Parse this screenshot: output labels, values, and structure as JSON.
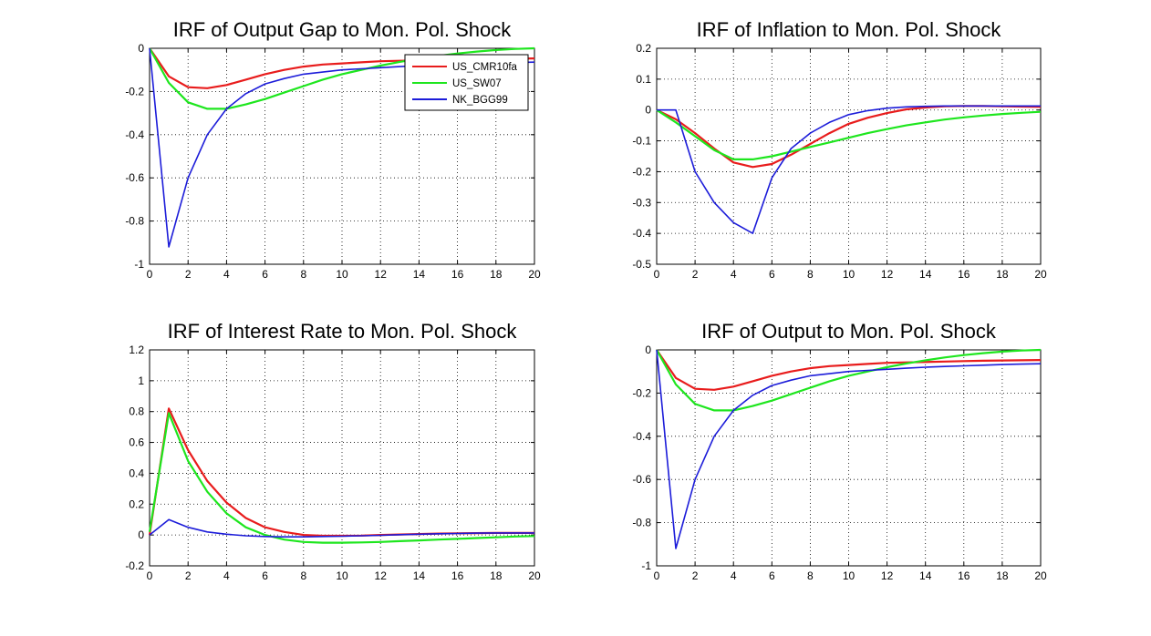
{
  "colors": {
    "US_CMR10fa": "#e81c1c",
    "US_SW07": "#1ee61e",
    "NK_BGG99": "#1c1cd9",
    "background": "#ffffff",
    "axes": "#000000"
  },
  "chart_data": [
    {
      "type": "line",
      "title": "IRF of Output Gap to Mon. Pol. Shock",
      "xlim": [
        0,
        20
      ],
      "ylim": [
        -1,
        0
      ],
      "grid": true,
      "xticks": [
        "0",
        "2",
        "4",
        "6",
        "8",
        "10",
        "12",
        "14",
        "16",
        "18",
        "20"
      ],
      "yticks": [
        "0",
        "-0.2",
        "-0.4",
        "-0.6",
        "-0.8",
        "-1"
      ],
      "legend": {
        "placement": "top-right",
        "entries": [
          "US_CMR10fa",
          "US_SW07",
          "NK_BGG99"
        ]
      },
      "x": [
        0,
        1,
        2,
        3,
        4,
        5,
        6,
        7,
        8,
        9,
        10,
        11,
        12,
        13,
        14,
        15,
        16,
        17,
        18,
        19,
        20
      ],
      "series": [
        {
          "name": "US_CMR10fa",
          "values": [
            0,
            -0.13,
            -0.18,
            -0.185,
            -0.17,
            -0.145,
            -0.12,
            -0.1,
            -0.085,
            -0.075,
            -0.07,
            -0.065,
            -0.06,
            -0.058,
            -0.056,
            -0.054,
            -0.052,
            -0.05,
            -0.049,
            -0.048,
            -0.047
          ]
        },
        {
          "name": "US_SW07",
          "values": [
            0,
            -0.16,
            -0.25,
            -0.28,
            -0.28,
            -0.26,
            -0.235,
            -0.205,
            -0.175,
            -0.145,
            -0.12,
            -0.1,
            -0.08,
            -0.063,
            -0.048,
            -0.035,
            -0.024,
            -0.015,
            -0.008,
            -0.003,
            0
          ]
        },
        {
          "name": "NK_BGG99",
          "values": [
            0,
            -0.92,
            -0.6,
            -0.4,
            -0.28,
            -0.21,
            -0.165,
            -0.14,
            -0.12,
            -0.11,
            -0.1,
            -0.095,
            -0.09,
            -0.085,
            -0.08,
            -0.077,
            -0.074,
            -0.071,
            -0.068,
            -0.066,
            -0.064
          ]
        }
      ]
    },
    {
      "type": "line",
      "title": "IRF of Inflation to Mon. Pol. Shock",
      "xlim": [
        0,
        20
      ],
      "ylim": [
        -0.5,
        0.2
      ],
      "grid": true,
      "xticks": [
        "0",
        "2",
        "4",
        "6",
        "8",
        "10",
        "12",
        "14",
        "16",
        "18",
        "20"
      ],
      "yticks": [
        "0.2",
        "0.1",
        "0",
        "-0.1",
        "-0.2",
        "-0.3",
        "-0.4",
        "-0.5"
      ],
      "x": [
        0,
        1,
        2,
        3,
        4,
        5,
        6,
        7,
        8,
        9,
        10,
        11,
        12,
        13,
        14,
        15,
        16,
        17,
        18,
        19,
        20
      ],
      "series": [
        {
          "name": "US_CMR10fa",
          "values": [
            0,
            -0.03,
            -0.075,
            -0.125,
            -0.17,
            -0.185,
            -0.175,
            -0.145,
            -0.11,
            -0.075,
            -0.045,
            -0.025,
            -0.01,
            0.002,
            0.008,
            0.012,
            0.013,
            0.013,
            0.012,
            0.011,
            0.01
          ]
        },
        {
          "name": "US_SW07",
          "values": [
            0,
            -0.04,
            -0.085,
            -0.13,
            -0.16,
            -0.16,
            -0.15,
            -0.135,
            -0.12,
            -0.105,
            -0.09,
            -0.075,
            -0.062,
            -0.05,
            -0.04,
            -0.031,
            -0.024,
            -0.018,
            -0.013,
            -0.009,
            -0.006
          ]
        },
        {
          "name": "NK_BGG99",
          "values": [
            0,
            0,
            -0.2,
            -0.3,
            -0.365,
            -0.4,
            -0.22,
            -0.125,
            -0.075,
            -0.04,
            -0.015,
            -0.002,
            0.006,
            0.01,
            0.012,
            0.013,
            0.013,
            0.013,
            0.013,
            0.013,
            0.013
          ]
        }
      ]
    },
    {
      "type": "line",
      "title": "IRF of Interest Rate to Mon. Pol. Shock",
      "xlim": [
        0,
        20
      ],
      "ylim": [
        -0.2,
        1.2
      ],
      "grid": true,
      "xticks": [
        "0",
        "2",
        "4",
        "6",
        "8",
        "10",
        "12",
        "14",
        "16",
        "18",
        "20"
      ],
      "yticks": [
        "1.2",
        "1",
        "0.8",
        "0.6",
        "0.4",
        "0.2",
        "0",
        "-0.2"
      ],
      "x": [
        0,
        1,
        2,
        3,
        4,
        5,
        6,
        7,
        8,
        9,
        10,
        11,
        12,
        13,
        14,
        15,
        16,
        17,
        18,
        19,
        20
      ],
      "series": [
        {
          "name": "US_CMR10fa",
          "values": [
            0,
            0.82,
            0.55,
            0.35,
            0.21,
            0.11,
            0.05,
            0.02,
            0.0,
            -0.005,
            -0.005,
            -0.004,
            0.0,
            0.003,
            0.006,
            0.009,
            0.011,
            0.012,
            0.013,
            0.013,
            0.013
          ]
        },
        {
          "name": "US_SW07",
          "values": [
            0.02,
            0.79,
            0.48,
            0.28,
            0.14,
            0.05,
            0.0,
            -0.03,
            -0.045,
            -0.05,
            -0.05,
            -0.048,
            -0.045,
            -0.04,
            -0.035,
            -0.03,
            -0.025,
            -0.02,
            -0.015,
            -0.01,
            -0.007
          ]
        },
        {
          "name": "NK_BGG99",
          "values": [
            0,
            0.1,
            0.05,
            0.02,
            0.005,
            -0.005,
            -0.01,
            -0.012,
            -0.012,
            -0.01,
            -0.008,
            -0.005,
            -0.002,
            0.002,
            0.005,
            0.008,
            0.01,
            0.012,
            0.013,
            0.013,
            0.013
          ]
        }
      ]
    },
    {
      "type": "line",
      "title": "IRF of Output to Mon. Pol. Shock",
      "xlim": [
        0,
        20
      ],
      "ylim": [
        -1,
        0
      ],
      "grid": true,
      "xticks": [
        "0",
        "2",
        "4",
        "6",
        "8",
        "10",
        "12",
        "14",
        "16",
        "18",
        "20"
      ],
      "yticks": [
        "0",
        "-0.2",
        "-0.4",
        "-0.6",
        "-0.8",
        "-1"
      ],
      "x": [
        0,
        1,
        2,
        3,
        4,
        5,
        6,
        7,
        8,
        9,
        10,
        11,
        12,
        13,
        14,
        15,
        16,
        17,
        18,
        19,
        20
      ],
      "series": [
        {
          "name": "US_CMR10fa",
          "values": [
            0,
            -0.13,
            -0.18,
            -0.185,
            -0.17,
            -0.145,
            -0.12,
            -0.1,
            -0.085,
            -0.075,
            -0.07,
            -0.065,
            -0.06,
            -0.058,
            -0.056,
            -0.054,
            -0.052,
            -0.05,
            -0.049,
            -0.048,
            -0.047
          ]
        },
        {
          "name": "US_SW07",
          "values": [
            0,
            -0.16,
            -0.25,
            -0.28,
            -0.28,
            -0.26,
            -0.235,
            -0.205,
            -0.175,
            -0.145,
            -0.12,
            -0.1,
            -0.08,
            -0.063,
            -0.048,
            -0.035,
            -0.024,
            -0.015,
            -0.008,
            -0.003,
            0
          ]
        },
        {
          "name": "NK_BGG99",
          "values": [
            0,
            -0.92,
            -0.6,
            -0.4,
            -0.28,
            -0.21,
            -0.165,
            -0.14,
            -0.12,
            -0.11,
            -0.1,
            -0.095,
            -0.09,
            -0.085,
            -0.08,
            -0.077,
            -0.074,
            -0.071,
            -0.068,
            -0.066,
            -0.064
          ]
        }
      ]
    }
  ]
}
